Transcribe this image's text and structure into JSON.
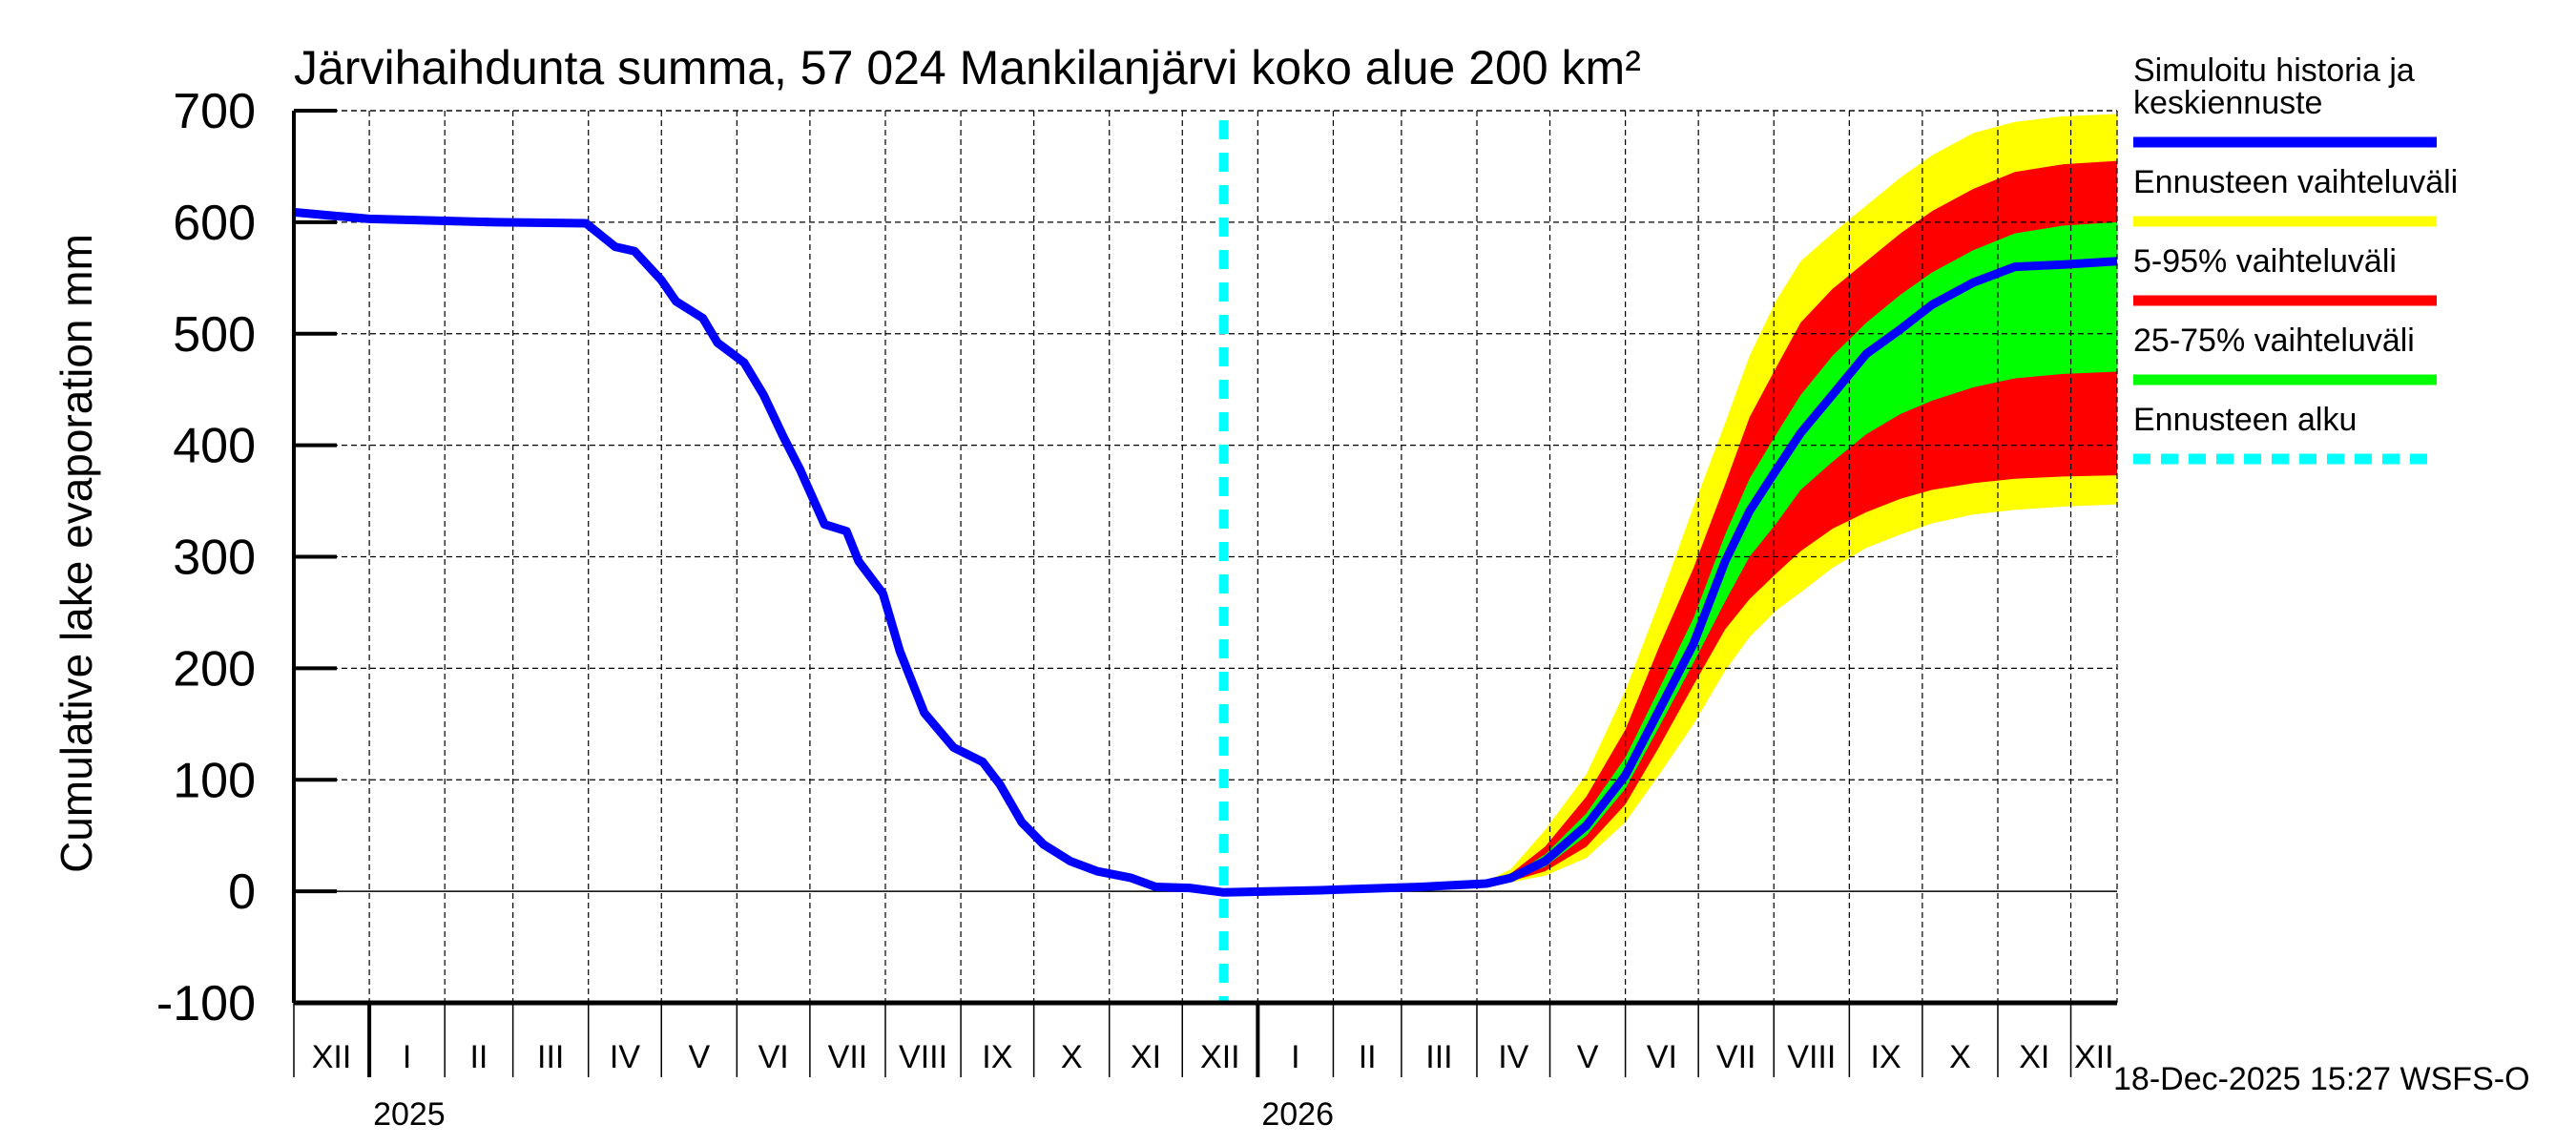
{
  "chart_data": {
    "type": "area",
    "title": "Järvihaihdunta summa, 57 024 Mankilanjärvi koko alue 200 km²",
    "xlabel": "",
    "ylabel": "Cumulative lake evaporation   mm",
    "ylim": [
      -100,
      700
    ],
    "yticks": [
      -100,
      0,
      100,
      200,
      300,
      400,
      500,
      600,
      700
    ],
    "x_unit": "days since 2024-12-01",
    "xlim": [
      0,
      749
    ],
    "grid": true,
    "months": [
      {
        "label": "XII",
        "start": 0
      },
      {
        "label": "I",
        "start": 31
      },
      {
        "label": "II",
        "start": 62
      },
      {
        "label": "III",
        "start": 90
      },
      {
        "label": "IV",
        "start": 121
      },
      {
        "label": "V",
        "start": 151
      },
      {
        "label": "VI",
        "start": 182
      },
      {
        "label": "VII",
        "start": 212
      },
      {
        "label": "VIII",
        "start": 243
      },
      {
        "label": "IX",
        "start": 274
      },
      {
        "label": "X",
        "start": 304
      },
      {
        "label": "XI",
        "start": 335
      },
      {
        "label": "XII",
        "start": 365
      },
      {
        "label": "I",
        "start": 396
      },
      {
        "label": "II",
        "start": 427
      },
      {
        "label": "III",
        "start": 455
      },
      {
        "label": "IV",
        "start": 486
      },
      {
        "label": "V",
        "start": 516
      },
      {
        "label": "VI",
        "start": 547
      },
      {
        "label": "VII",
        "start": 577
      },
      {
        "label": "VIII",
        "start": 608
      },
      {
        "label": "IX",
        "start": 639
      },
      {
        "label": "X",
        "start": 669
      },
      {
        "label": "XI",
        "start": 700
      },
      {
        "label": "XII",
        "start": 730
      }
    ],
    "years": [
      {
        "label": "2025",
        "start": 31
      },
      {
        "label": "2026",
        "start": 396
      }
    ],
    "forecast_start": 382,
    "series": [
      {
        "name": "Simuloitu historia ja keskiennuste",
        "color": "#0000ff",
        "x": [
          0,
          15,
          31,
          83,
          120,
          132,
          140,
          151,
          157,
          168,
          174,
          185,
          193,
          201,
          208,
          218,
          227,
          232,
          242,
          249,
          259,
          271,
          283,
          290,
          299,
          308,
          319,
          330,
          344,
          354,
          368,
          382,
          422,
          463,
          490,
          500,
          514,
          531,
          547,
          561,
          575,
          588,
          598,
          609,
          619,
          632,
          646,
          660,
          673,
          690,
          707,
          727,
          749
        ],
        "y": [
          609,
          606,
          603,
          600,
          599,
          578,
          574,
          548,
          529,
          514,
          492,
          474,
          445,
          408,
          378,
          329,
          323,
          296,
          267,
          215,
          160,
          129,
          116,
          96,
          62,
          42,
          27,
          18,
          12,
          4,
          3,
          -1,
          1,
          4,
          7,
          12,
          27,
          59,
          104,
          163,
          222,
          296,
          341,
          378,
          411,
          445,
          482,
          504,
          526,
          546,
          560,
          562,
          565
        ]
      }
    ],
    "bands": [
      {
        "name": "Ennusteen vaihteluväli",
        "color": "#ffff00",
        "x": [
          382,
          463,
          490,
          500,
          514,
          531,
          547,
          561,
          575,
          588,
          598,
          609,
          619,
          632,
          646,
          660,
          673,
          690,
          707,
          727,
          749
        ],
        "low": [
          -1,
          4,
          6,
          8,
          14,
          30,
          62,
          105,
          150,
          198,
          228,
          252,
          268,
          290,
          308,
          320,
          330,
          338,
          342,
          345,
          347
        ],
        "high": [
          -1,
          4,
          9,
          20,
          55,
          105,
          180,
          260,
          345,
          420,
          480,
          530,
          565,
          590,
          615,
          640,
          660,
          680,
          690,
          695,
          697
        ]
      },
      {
        "name": "5-95% vaihteluväli",
        "color": "#ff0000",
        "x": [
          382,
          463,
          490,
          500,
          514,
          531,
          547,
          561,
          575,
          588,
          598,
          609,
          619,
          632,
          646,
          660,
          673,
          690,
          707,
          727,
          749
        ],
        "low": [
          -1,
          4,
          6,
          9,
          18,
          40,
          78,
          130,
          185,
          235,
          262,
          285,
          305,
          325,
          340,
          352,
          360,
          366,
          370,
          372,
          373
        ],
        "high": [
          -1,
          4,
          8,
          16,
          40,
          85,
          145,
          220,
          290,
          365,
          425,
          470,
          510,
          540,
          565,
          590,
          610,
          630,
          645,
          652,
          655
        ]
      },
      {
        "name": "25-75% vaihteluväli",
        "color": "#00ff00",
        "x": [
          382,
          463,
          490,
          500,
          514,
          531,
          547,
          561,
          575,
          588,
          598,
          609,
          619,
          632,
          646,
          660,
          673,
          690,
          707,
          727,
          749
        ],
        "low": [
          -1,
          4,
          7,
          10,
          22,
          50,
          92,
          148,
          205,
          260,
          300,
          330,
          360,
          385,
          410,
          428,
          440,
          452,
          460,
          464,
          466
        ],
        "high": [
          -1,
          4,
          7,
          14,
          33,
          70,
          120,
          182,
          245,
          320,
          370,
          410,
          445,
          480,
          510,
          535,
          555,
          575,
          590,
          597,
          600
        ]
      }
    ],
    "legend": {
      "placement": "right",
      "items": [
        {
          "label_lines": [
            "Simuloitu historia ja",
            "keskiennuste"
          ],
          "color": "#0000ff",
          "style": "solid"
        },
        {
          "label_lines": [
            "Ennusteen vaihteluväli"
          ],
          "color": "#ffff00",
          "style": "solid"
        },
        {
          "label_lines": [
            "5-95% vaihteluväli"
          ],
          "color": "#ff0000",
          "style": "solid"
        },
        {
          "label_lines": [
            "25-75% vaihteluväli"
          ],
          "color": "#00ff00",
          "style": "solid"
        },
        {
          "label_lines": [
            "Ennusteen alku"
          ],
          "color": "#00ffff",
          "style": "dashed"
        }
      ]
    },
    "footer": "18-Dec-2025 15:27 WSFS-O"
  }
}
